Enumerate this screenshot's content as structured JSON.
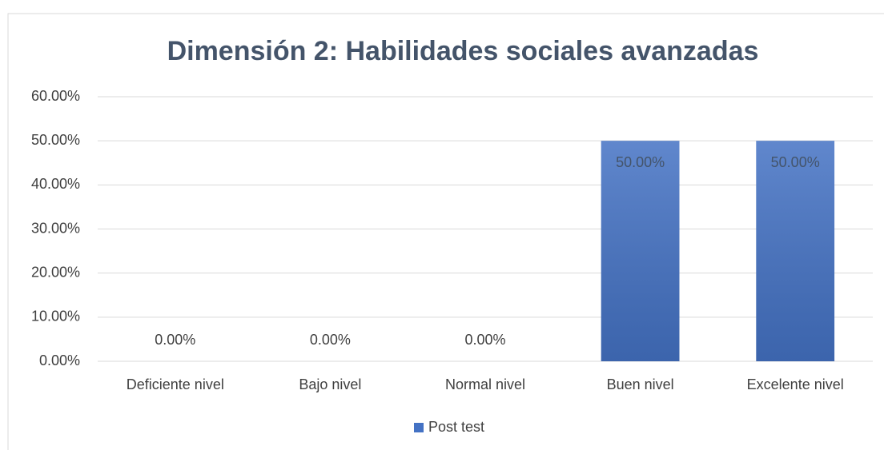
{
  "chart_data": {
    "type": "bar",
    "title": "Dimensión 2: Habilidades sociales avanzadas",
    "categories": [
      "Deficiente nivel",
      "Bajo nivel",
      "Normal nivel",
      "Buen nivel",
      "Excelente nivel"
    ],
    "series": [
      {
        "name": "Post test",
        "color": "#4472c4",
        "values": [
          0,
          0,
          0,
          50,
          50
        ],
        "value_labels": [
          "0.00%",
          "0.00%",
          "0.00%",
          "50.00%",
          "50.00%"
        ]
      }
    ],
    "ylim": [
      0,
      60
    ],
    "yticks": [
      {
        "value": 0,
        "label": "0.00%"
      },
      {
        "value": 10,
        "label": "10.00%"
      },
      {
        "value": 20,
        "label": "20.00%"
      },
      {
        "value": 30,
        "label": "30.00%"
      },
      {
        "value": 40,
        "label": "40.00%"
      },
      {
        "value": 50,
        "label": "50.00%"
      },
      {
        "value": 60,
        "label": "60.00%"
      }
    ],
    "grid": true,
    "legend": "bottom"
  }
}
